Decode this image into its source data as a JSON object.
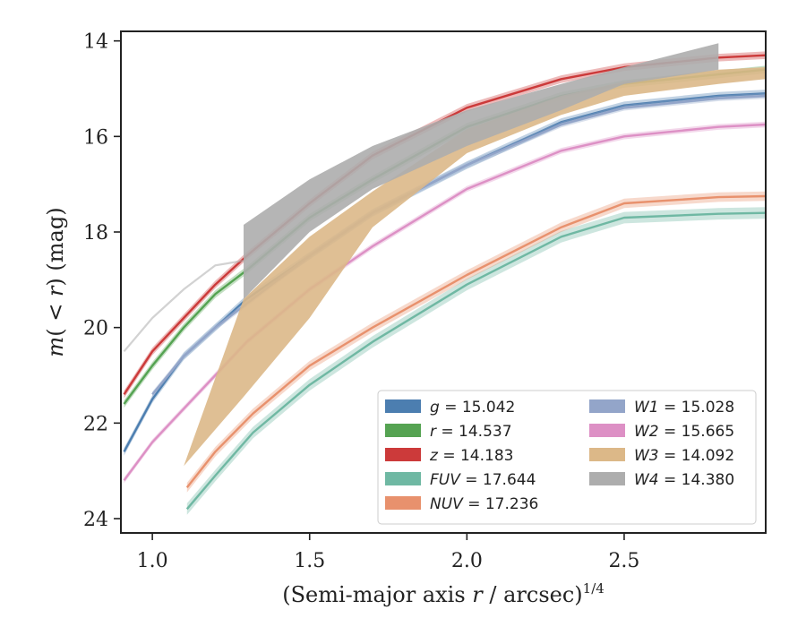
{
  "chart_data": {
    "type": "line",
    "xlabel": "(Semi-major axis r / arcsec)^1/4",
    "xlabel_parts": {
      "main": "(Semi-major axis ",
      "var": "r",
      "rest": " / arcsec)",
      "sup": "1/4"
    },
    "ylabel": "m(< r) (mag)",
    "ylabel_parts": {
      "pre": "m",
      "open": "(",
      "mid": " < r",
      "close": ") (mag)"
    },
    "xlim": [
      0.9,
      2.95
    ],
    "ylim": [
      24.3,
      13.8
    ],
    "y_inverted": true,
    "xticks": [
      1.0,
      1.5,
      2.0,
      2.5
    ],
    "xtick_labels": [
      "1.0",
      "1.5",
      "2.0",
      "2.5"
    ],
    "yticks": [
      14,
      16,
      18,
      20,
      22,
      24
    ],
    "ytick_labels": [
      "14",
      "16",
      "18",
      "20",
      "22",
      "24"
    ],
    "grid": false,
    "legend_position": "lower-right",
    "series": [
      {
        "name": "g = 15.042",
        "band": "g",
        "value": "15.042",
        "color": "#4c7eb0",
        "x": [
          0.91,
          1.0,
          1.1,
          1.2,
          1.3,
          1.5,
          1.7,
          2.0,
          2.3,
          2.5,
          2.8,
          2.95
        ],
        "y": [
          22.6,
          21.5,
          20.6,
          20.0,
          19.4,
          18.5,
          17.6,
          16.6,
          15.7,
          15.35,
          15.15,
          15.1
        ],
        "band_width": 0.08
      },
      {
        "name": "r = 14.537",
        "band": "r",
        "value": "14.537",
        "color": "#55a352",
        "x": [
          0.91,
          1.0,
          1.1,
          1.2,
          1.3,
          1.5,
          1.7,
          2.0,
          2.3,
          2.5,
          2.8,
          2.95
        ],
        "y": [
          21.6,
          20.8,
          20.0,
          19.3,
          18.8,
          17.7,
          16.9,
          15.8,
          15.15,
          14.9,
          14.7,
          14.6
        ],
        "band_width": 0.08
      },
      {
        "name": "z = 14.183",
        "band": "z",
        "value": "14.183",
        "color": "#cc3a3a",
        "x": [
          0.91,
          1.0,
          1.1,
          1.2,
          1.3,
          1.5,
          1.7,
          2.0,
          2.3,
          2.5,
          2.8,
          2.95
        ],
        "y": [
          21.4,
          20.5,
          19.8,
          19.1,
          18.5,
          17.4,
          16.4,
          15.4,
          14.8,
          14.55,
          14.35,
          14.3
        ],
        "band_width": 0.08
      },
      {
        "name": "FUV = 17.644",
        "band": "FUV",
        "value": "17.644",
        "color": "#6fb8a3",
        "x": [
          1.11,
          1.2,
          1.32,
          1.5,
          1.7,
          2.0,
          2.3,
          2.5,
          2.8,
          2.95
        ],
        "y": [
          23.8,
          23.1,
          22.2,
          21.2,
          20.3,
          19.1,
          18.1,
          17.7,
          17.62,
          17.6
        ],
        "band_width": 0.12
      },
      {
        "name": "NUV = 17.236",
        "band": "NUV",
        "value": "17.236",
        "color": "#e8916d",
        "x": [
          1.11,
          1.2,
          1.32,
          1.5,
          1.7,
          2.0,
          2.3,
          2.5,
          2.8,
          2.95
        ],
        "y": [
          23.35,
          22.6,
          21.8,
          20.8,
          20.0,
          18.9,
          17.9,
          17.4,
          17.27,
          17.25
        ],
        "band_width": 0.1
      },
      {
        "name": "W1 = 15.028",
        "band": "W1",
        "value": "15.028",
        "color": "#93a5c9",
        "x": [
          1.0,
          1.1,
          1.2,
          1.3,
          1.5,
          1.7,
          2.0,
          2.3,
          2.5,
          2.8,
          2.95
        ],
        "y": [
          21.4,
          20.6,
          20.0,
          19.5,
          18.5,
          17.6,
          16.6,
          15.75,
          15.4,
          15.2,
          15.15
        ],
        "band_width": 0.06
      },
      {
        "name": "W2 = 15.665",
        "band": "W2",
        "value": "15.665",
        "color": "#dd90c5",
        "x": [
          0.91,
          1.0,
          1.1,
          1.2,
          1.3,
          1.5,
          1.7,
          2.0,
          2.3,
          2.5,
          2.8,
          2.95
        ],
        "y": [
          23.2,
          22.4,
          21.7,
          21.0,
          20.3,
          19.2,
          18.3,
          17.1,
          16.3,
          16.0,
          15.8,
          15.75
        ],
        "band_width": 0.06
      },
      {
        "name": "W3 = 14.092",
        "band": "W3",
        "value": "14.092",
        "color": "#dcb888",
        "x": [
          0.96,
          1.1,
          1.29,
          1.5,
          1.7,
          2.0,
          2.3,
          2.5,
          2.8,
          2.95
        ],
        "y": [
          24.3,
          22.9,
          20.4,
          18.8,
          17.5,
          16.1,
          15.35,
          15.0,
          14.75,
          14.65
        ],
        "y_lo": [
          24.3,
          22.9,
          21.45,
          19.8,
          17.9,
          16.35,
          15.55,
          15.15,
          14.9,
          14.8
        ],
        "y_hi": [
          24.3,
          22.9,
          19.4,
          18.1,
          17.15,
          15.85,
          15.15,
          14.85,
          14.6,
          14.55
        ]
      },
      {
        "name": "W4 = 14.380",
        "band": "W4",
        "value": "14.380",
        "color": "#adadad",
        "x": [
          0.91,
          1.0,
          1.1,
          1.2,
          1.29,
          1.5,
          1.7,
          2.0,
          2.3,
          2.5,
          2.8
        ],
        "y": [
          20.5,
          19.8,
          19.2,
          18.7,
          18.6,
          17.4,
          16.6,
          15.8,
          15.2,
          14.75,
          14.3
        ],
        "y_lo": [
          20.5,
          19.8,
          19.2,
          18.7,
          19.4,
          18.0,
          17.1,
          16.2,
          15.45,
          14.9,
          14.6
        ],
        "y_hi": [
          20.5,
          19.8,
          19.2,
          18.7,
          17.85,
          16.9,
          16.2,
          15.45,
          14.9,
          14.55,
          14.05
        ],
        "band_start_x": 1.29
      }
    ]
  }
}
